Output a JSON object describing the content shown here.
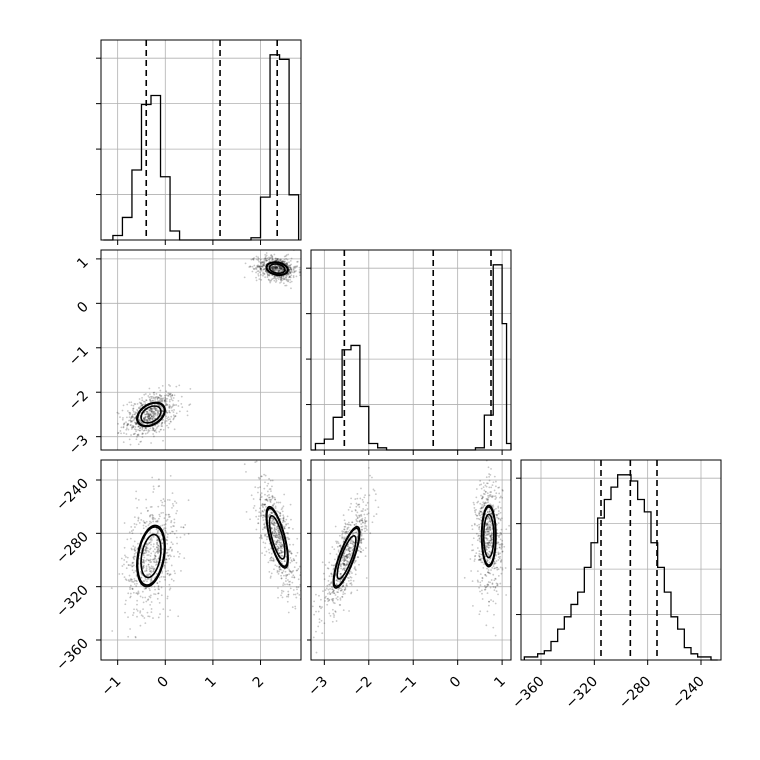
{
  "chart_data": {
    "type": "corner",
    "title": "",
    "parameters": [
      {
        "index": 0,
        "range": [
          -1.35,
          2.85
        ],
        "ticks": [
          -1,
          0,
          1,
          2
        ],
        "quantiles": [
          -0.4,
          1.15,
          2.35
        ]
      },
      {
        "index": 1,
        "range": [
          -3.3,
          1.2
        ],
        "ticks": [
          -3,
          -2,
          -1,
          0,
          1
        ],
        "quantiles": [
          -2.55,
          -0.55,
          0.75
        ]
      },
      {
        "index": 2,
        "range": [
          -375,
          -225
        ],
        "ticks": [
          -360,
          -320,
          -280,
          -240
        ],
        "quantiles": [
          -315,
          -293,
          -273
        ]
      }
    ],
    "histograms": [
      {
        "parameter": 0,
        "x": [
          -1.25,
          -1.15,
          -1.05,
          -0.95,
          -0.85,
          -0.75,
          -0.65,
          -0.55,
          -0.45,
          -0.35,
          -0.25,
          -0.15,
          -0.05,
          0.05,
          0.15,
          0.25,
          0.35,
          0.45,
          0.55,
          0.65,
          0.75,
          0.85,
          0.95,
          1.05,
          1.15,
          1.25,
          1.35,
          1.45,
          1.55,
          1.65,
          1.75,
          1.85,
          1.95,
          2.05,
          2.15,
          2.25,
          2.35,
          2.45,
          2.55,
          2.65,
          2.75
        ],
        "counts": [
          0,
          0,
          2,
          2,
          10,
          10,
          31,
          31,
          60,
          60,
          64,
          64,
          28,
          28,
          4,
          4,
          0,
          0,
          0,
          0,
          0,
          0,
          0,
          0,
          0,
          0,
          0,
          0,
          0,
          0,
          0,
          1,
          1,
          19,
          19,
          82,
          82,
          80,
          80,
          20,
          20
        ]
      },
      {
        "parameter": 1,
        "x": [
          -3.25,
          -3.15,
          -3.05,
          -2.95,
          -2.85,
          -2.75,
          -2.65,
          -2.55,
          -2.45,
          -2.35,
          -2.25,
          -2.15,
          -2.05,
          -1.95,
          -1.85,
          -1.75,
          -1.65,
          -1.55,
          -1.45,
          -1.35,
          -1.25,
          -1.15,
          -1.05,
          -0.95,
          -0.85,
          -0.75,
          -0.65,
          -0.55,
          -0.45,
          -0.35,
          -0.25,
          -0.15,
          -0.05,
          0.05,
          0.15,
          0.25,
          0.35,
          0.45,
          0.55,
          0.65,
          0.75,
          0.85,
          0.95,
          1.05,
          1.15
        ],
        "counts": [
          0,
          3,
          3,
          5,
          5,
          15,
          15,
          46,
          46,
          48,
          48,
          20,
          20,
          3,
          3,
          1,
          1,
          0,
          0,
          0,
          0,
          0,
          0,
          0,
          0,
          0,
          0,
          0,
          0,
          0,
          0,
          0,
          0,
          0,
          0,
          0,
          0,
          1,
          1,
          16,
          16,
          85,
          85,
          58,
          3
        ]
      },
      {
        "parameter": 2,
        "x": [
          -370,
          -365,
          -360,
          -355,
          -350,
          -345,
          -340,
          -335,
          -330,
          -325,
          -320,
          -315,
          -310,
          -305,
          -300,
          -295,
          -290,
          -285,
          -280,
          -275,
          -270,
          -265,
          -260,
          -255,
          -250,
          -245,
          -240,
          -235,
          -230
        ],
        "counts": [
          1,
          1,
          2,
          3,
          6,
          10,
          14,
          18,
          22,
          30,
          38,
          46,
          52,
          56,
          60,
          60,
          58,
          52,
          48,
          38,
          30,
          22,
          14,
          10,
          4,
          2,
          1,
          1,
          0
        ]
      }
    ],
    "density_panels": [
      {
        "x_param": 0,
        "y_param": 1,
        "modes": [
          {
            "cx": -0.3,
            "cy": -2.5,
            "sx": 0.22,
            "sy": 0.2,
            "rho": 0.35,
            "levels": [
              0.5,
              1.0,
              1.6
            ]
          },
          {
            "cx": 2.35,
            "cy": 0.78,
            "sx": 0.17,
            "sy": 0.11,
            "rho": -0.2,
            "levels": [
              0.5,
              1.0,
              1.6
            ]
          }
        ]
      },
      {
        "x_param": 0,
        "y_param": 2,
        "modes": [
          {
            "cx": -0.3,
            "cy": -297,
            "sx": 0.22,
            "sy": 17,
            "rho": 0.3,
            "levels": [
              0.5,
              1.0,
              1.6
            ]
          },
          {
            "cx": 2.35,
            "cy": -283,
            "sx": 0.17,
            "sy": 17,
            "rho": -0.7,
            "levels": [
              0.5,
              1.0,
              1.6
            ]
          }
        ]
      },
      {
        "x_param": 1,
        "y_param": 2,
        "modes": [
          {
            "cx": -2.5,
            "cy": -298,
            "sx": 0.22,
            "sy": 17,
            "rho": 0.8,
            "levels": [
              0.5,
              1.0,
              1.6
            ]
          },
          {
            "cx": 0.7,
            "cy": -282,
            "sx": 0.12,
            "sy": 17,
            "rho": 0.0,
            "levels": [
              0.5,
              1.0,
              1.6
            ]
          }
        ]
      }
    ],
    "grid": true
  }
}
